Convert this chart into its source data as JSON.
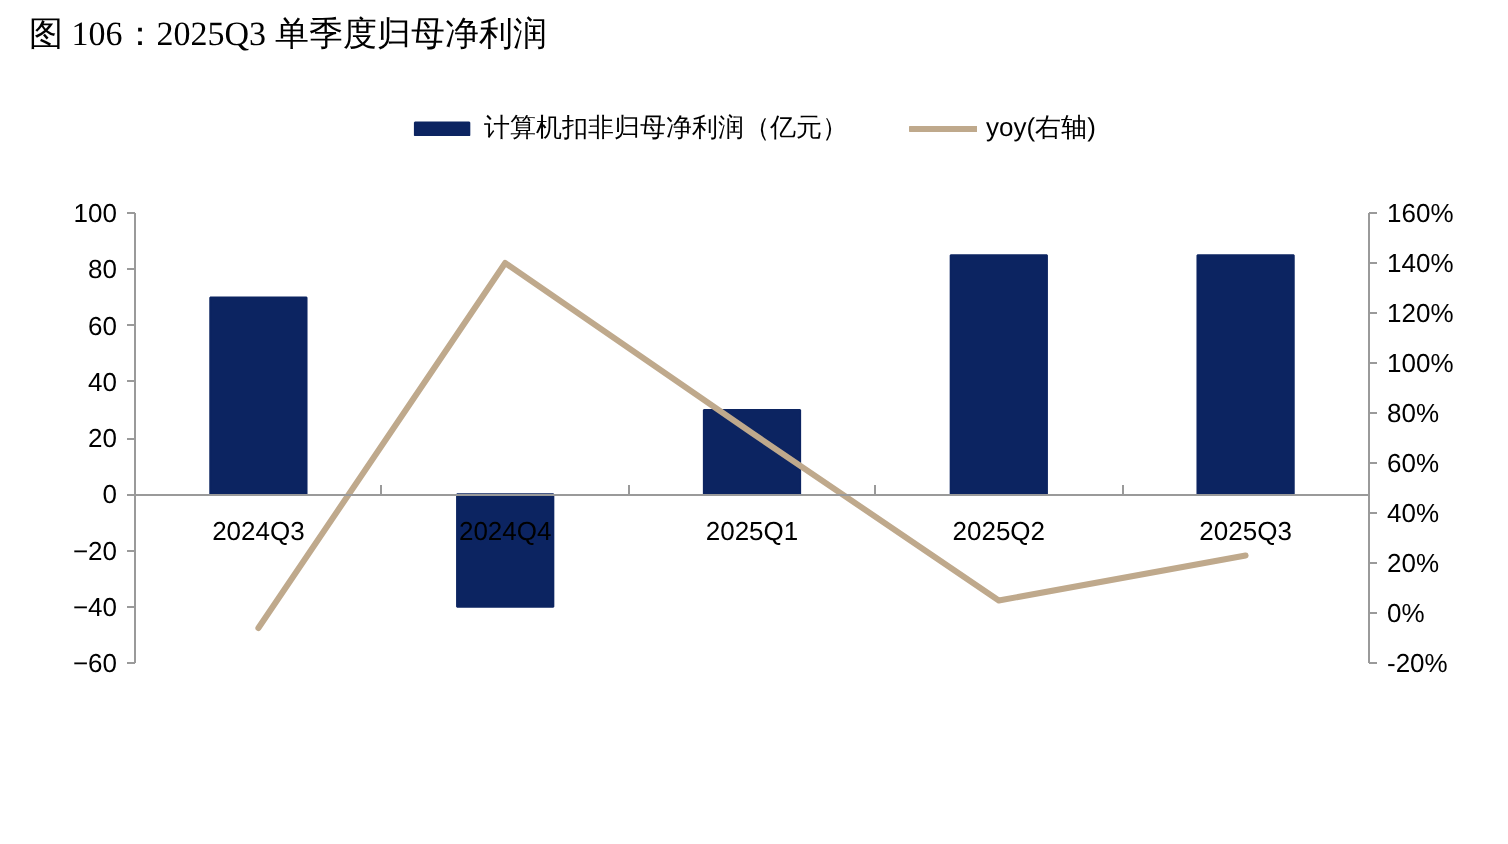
{
  "chart_data": {
    "type": "bar",
    "title": "图 106：2025Q3 单季度归母净利润",
    "categories": [
      "2024Q3",
      "2024Q4",
      "2025Q1",
      "2025Q2",
      "2025Q3"
    ],
    "series": [
      {
        "name": "计算机扣非归母净利润（亿元）",
        "color": "#0c2461",
        "values": [
          70,
          -40,
          30,
          85,
          85
        ]
      },
      {
        "name": "yoy(右轴)",
        "type": "line",
        "axis": "y2",
        "color": "#bfa98c",
        "values": [
          -6,
          140,
          72,
          5,
          23
        ]
      }
    ],
    "ylim": [
      -60,
      100
    ],
    "yticks": [
      -60,
      -40,
      -20,
      0,
      20,
      40,
      60,
      80,
      100
    ],
    "y2lim": [
      -20,
      160
    ],
    "y2ticks": [
      {
        "value": -20,
        "label": "-20%"
      },
      {
        "value": 0,
        "label": "0%"
      },
      {
        "value": 20,
        "label": "20%"
      },
      {
        "value": 40,
        "label": "40%"
      },
      {
        "value": 60,
        "label": "60%"
      },
      {
        "value": 80,
        "label": "80%"
      },
      {
        "value": 100,
        "label": "100%"
      },
      {
        "value": 120,
        "label": "120%"
      },
      {
        "value": 140,
        "label": "140%"
      },
      {
        "value": 160,
        "label": "160%"
      }
    ],
    "legend": "top",
    "grid": false
  }
}
